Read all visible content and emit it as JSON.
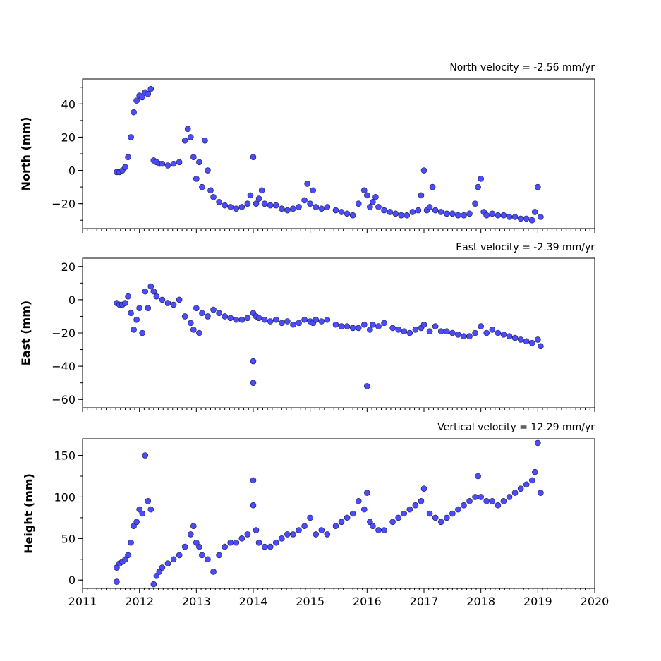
{
  "chart_data": [
    {
      "type": "scatter",
      "title": "North velocity = -2.56 mm/yr",
      "ylabel": "North (mm)",
      "xlim": [
        2011,
        2020
      ],
      "ylim": [
        -35,
        55
      ],
      "yticks": [
        -20,
        0,
        20,
        40
      ],
      "xticks": [],
      "series": [
        {
          "x": [
            2011.6,
            2011.65,
            2011.7,
            2011.75,
            2011.8,
            2011.85,
            2011.9,
            2011.95,
            2012.0,
            2012.05,
            2012.1,
            2012.15,
            2012.2,
            2012.25,
            2012.3,
            2012.35,
            2012.4,
            2012.5,
            2012.6,
            2012.7,
            2012.8,
            2012.85,
            2012.9,
            2012.95,
            2013.0,
            2013.05,
            2013.1,
            2013.15,
            2013.2,
            2013.25,
            2013.3,
            2013.4,
            2013.5,
            2013.6,
            2013.7,
            2013.8,
            2013.9,
            2013.95,
            2014.0,
            2014.05,
            2014.1,
            2014.15,
            2014.2,
            2014.3,
            2014.4,
            2014.5,
            2014.6,
            2014.7,
            2014.8,
            2014.9,
            2014.95,
            2015.0,
            2015.05,
            2015.1,
            2015.2,
            2015.3,
            2015.45,
            2015.55,
            2015.65,
            2015.75,
            2015.85,
            2015.95,
            2016.0,
            2016.05,
            2016.1,
            2016.15,
            2016.2,
            2016.3,
            2016.4,
            2016.5,
            2016.6,
            2016.7,
            2016.8,
            2016.9,
            2016.95,
            2017.0,
            2017.05,
            2017.1,
            2017.15,
            2017.2,
            2017.3,
            2017.4,
            2017.5,
            2017.6,
            2017.7,
            2017.8,
            2017.9,
            2017.95,
            2018.0,
            2018.05,
            2018.1,
            2018.2,
            2018.3,
            2018.4,
            2018.5,
            2018.6,
            2018.7,
            2018.8,
            2018.9,
            2018.95,
            2019.0,
            2019.05
          ],
          "y": [
            -1,
            -1,
            0,
            2,
            8,
            20,
            35,
            42,
            45,
            44,
            47,
            46,
            49,
            6,
            5,
            4,
            4,
            3,
            4,
            5,
            18,
            25,
            20,
            8,
            -5,
            5,
            -10,
            18,
            0,
            -12,
            -16,
            -19,
            -21,
            -22,
            -23,
            -22,
            -20,
            -15,
            8,
            -20,
            -17,
            -12,
            -20,
            -21,
            -21,
            -23,
            -24,
            -23,
            -22,
            -18,
            -8,
            -20,
            -12,
            -22,
            -23,
            -22,
            -24,
            -25,
            -26,
            -27,
            -20,
            -12,
            -15,
            -22,
            -19,
            -16,
            -22,
            -24,
            -25,
            -26,
            -27,
            -27,
            -25,
            -24,
            -15,
            0,
            -24,
            -22,
            -10,
            -24,
            -25,
            -26,
            -26,
            -27,
            -27,
            -26,
            -20,
            -10,
            -5,
            -25,
            -27,
            -26,
            -27,
            -27,
            -28,
            -28,
            -29,
            -29,
            -30,
            -25,
            -10,
            -28
          ]
        }
      ]
    },
    {
      "type": "scatter",
      "title": "East velocity = -2.39 mm/yr",
      "ylabel": "East (mm)",
      "xlim": [
        2011,
        2020
      ],
      "ylim": [
        -65,
        25
      ],
      "yticks": [
        -60,
        -40,
        -20,
        0,
        20
      ],
      "xticks": [],
      "series": [
        {
          "x": [
            2011.6,
            2011.65,
            2011.7,
            2011.75,
            2011.8,
            2011.85,
            2011.9,
            2011.95,
            2012.0,
            2012.05,
            2012.1,
            2012.15,
            2012.2,
            2012.25,
            2012.3,
            2012.4,
            2012.5,
            2012.6,
            2012.7,
            2012.8,
            2012.9,
            2012.95,
            2013.0,
            2013.05,
            2013.1,
            2013.2,
            2013.3,
            2013.4,
            2013.5,
            2013.6,
            2013.7,
            2013.8,
            2013.9,
            2014.0,
            2014.0,
            2014.0,
            2014.05,
            2014.1,
            2014.2,
            2014.3,
            2014.4,
            2014.5,
            2014.6,
            2014.7,
            2014.8,
            2014.9,
            2015.0,
            2015.05,
            2015.1,
            2015.2,
            2015.3,
            2015.45,
            2015.55,
            2015.65,
            2015.75,
            2015.85,
            2015.95,
            2016.0,
            2016.05,
            2016.1,
            2016.2,
            2016.3,
            2016.45,
            2016.55,
            2016.65,
            2016.75,
            2016.85,
            2016.95,
            2017.0,
            2017.1,
            2017.2,
            2017.3,
            2017.4,
            2017.5,
            2017.6,
            2017.7,
            2017.8,
            2017.9,
            2018.0,
            2018.1,
            2018.2,
            2018.3,
            2018.4,
            2018.5,
            2018.6,
            2018.7,
            2018.8,
            2018.9,
            2019.0,
            2019.05
          ],
          "y": [
            -2,
            -3,
            -3,
            -2,
            2,
            -8,
            -18,
            -12,
            -5,
            -20,
            5,
            -5,
            8,
            5,
            2,
            0,
            -2,
            -3,
            0,
            -10,
            -14,
            -18,
            -5,
            -20,
            -8,
            -10,
            -6,
            -8,
            -10,
            -11,
            -12,
            -12,
            -11,
            -8,
            -37,
            -50,
            -10,
            -11,
            -12,
            -13,
            -12,
            -14,
            -13,
            -15,
            -14,
            -12,
            -13,
            -14,
            -12,
            -13,
            -12,
            -15,
            -16,
            -16,
            -17,
            -17,
            -15,
            -52,
            -18,
            -15,
            -16,
            -14,
            -17,
            -18,
            -19,
            -20,
            -18,
            -17,
            -15,
            -19,
            -16,
            -19,
            -19,
            -20,
            -21,
            -22,
            -22,
            -20,
            -16,
            -20,
            -18,
            -20,
            -21,
            -22,
            -23,
            -24,
            -25,
            -26,
            -24,
            -28
          ]
        }
      ]
    },
    {
      "type": "scatter",
      "title": "Vertical velocity = 12.29 mm/yr",
      "ylabel": "Height (mm)",
      "xlim": [
        2011,
        2020
      ],
      "ylim": [
        -10,
        170
      ],
      "yticks": [
        0,
        50,
        100,
        150
      ],
      "xticks": [
        "2011",
        "2012",
        "2013",
        "2014",
        "2015",
        "2016",
        "2017",
        "2018",
        "2019",
        "2020"
      ],
      "series": [
        {
          "x": [
            2011.6,
            2011.6,
            2011.65,
            2011.7,
            2011.75,
            2011.8,
            2011.85,
            2011.9,
            2011.95,
            2012.0,
            2012.05,
            2012.1,
            2012.15,
            2012.2,
            2012.25,
            2012.3,
            2012.35,
            2012.4,
            2012.5,
            2012.6,
            2012.7,
            2012.8,
            2012.9,
            2012.95,
            2013.0,
            2013.05,
            2013.1,
            2013.2,
            2013.3,
            2013.4,
            2013.5,
            2013.6,
            2013.7,
            2013.8,
            2013.9,
            2014.0,
            2014.0,
            2014.05,
            2014.1,
            2014.2,
            2014.3,
            2014.4,
            2014.5,
            2014.6,
            2014.7,
            2014.8,
            2014.9,
            2015.0,
            2015.1,
            2015.2,
            2015.3,
            2015.45,
            2015.55,
            2015.65,
            2015.75,
            2015.85,
            2015.95,
            2016.0,
            2016.05,
            2016.1,
            2016.2,
            2016.3,
            2016.45,
            2016.55,
            2016.65,
            2016.75,
            2016.85,
            2016.95,
            2017.0,
            2017.1,
            2017.2,
            2017.3,
            2017.4,
            2017.5,
            2017.6,
            2017.7,
            2017.8,
            2017.9,
            2017.95,
            2018.0,
            2018.1,
            2018.2,
            2018.3,
            2018.4,
            2018.5,
            2018.6,
            2018.7,
            2018.8,
            2018.9,
            2018.95,
            2019.0,
            2019.05
          ],
          "y": [
            15,
            -2,
            20,
            22,
            25,
            30,
            45,
            65,
            70,
            85,
            80,
            150,
            95,
            85,
            -5,
            5,
            10,
            15,
            20,
            25,
            30,
            40,
            55,
            65,
            45,
            40,
            30,
            25,
            10,
            30,
            40,
            45,
            45,
            50,
            55,
            90,
            120,
            60,
            45,
            40,
            40,
            45,
            50,
            55,
            55,
            60,
            65,
            75,
            55,
            60,
            55,
            65,
            70,
            75,
            80,
            95,
            85,
            105,
            70,
            65,
            60,
            60,
            70,
            75,
            80,
            85,
            90,
            95,
            110,
            80,
            75,
            70,
            75,
            80,
            85,
            90,
            95,
            100,
            125,
            100,
            95,
            95,
            90,
            95,
            100,
            105,
            110,
            115,
            120,
            130,
            165,
            105
          ]
        }
      ]
    }
  ]
}
